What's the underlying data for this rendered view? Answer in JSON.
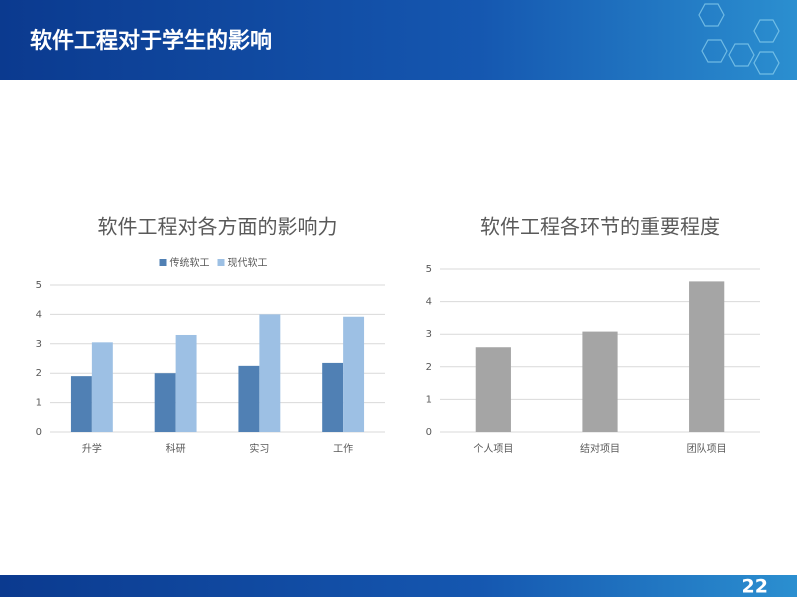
{
  "header": {
    "title": "软件工程对于学生的影响"
  },
  "page_number": "22",
  "chart_data": [
    {
      "type": "bar",
      "title": "软件工程对各方面的影响力",
      "categories": [
        "升学",
        "科研",
        "实习",
        "工作"
      ],
      "series": [
        {
          "name": "传统软工",
          "color": "#5080b4",
          "values": [
            1.9,
            2.0,
            2.25,
            2.35
          ]
        },
        {
          "name": "现代软工",
          "color": "#9dc0e4",
          "values": [
            3.05,
            3.3,
            4.0,
            3.92
          ]
        }
      ],
      "ylim": [
        0,
        5
      ],
      "yticks": [
        0,
        1,
        2,
        3,
        4,
        5
      ],
      "grid": true,
      "legend": "top"
    },
    {
      "type": "bar",
      "title": "软件工程各环节的重要程度",
      "categories": [
        "个人项目",
        "结对项目",
        "团队项目"
      ],
      "values": [
        2.6,
        3.08,
        4.62
      ],
      "color": "#a5a5a5",
      "ylim": [
        0,
        5
      ],
      "yticks": [
        0,
        1,
        2,
        3,
        4,
        5
      ],
      "grid": true
    }
  ]
}
